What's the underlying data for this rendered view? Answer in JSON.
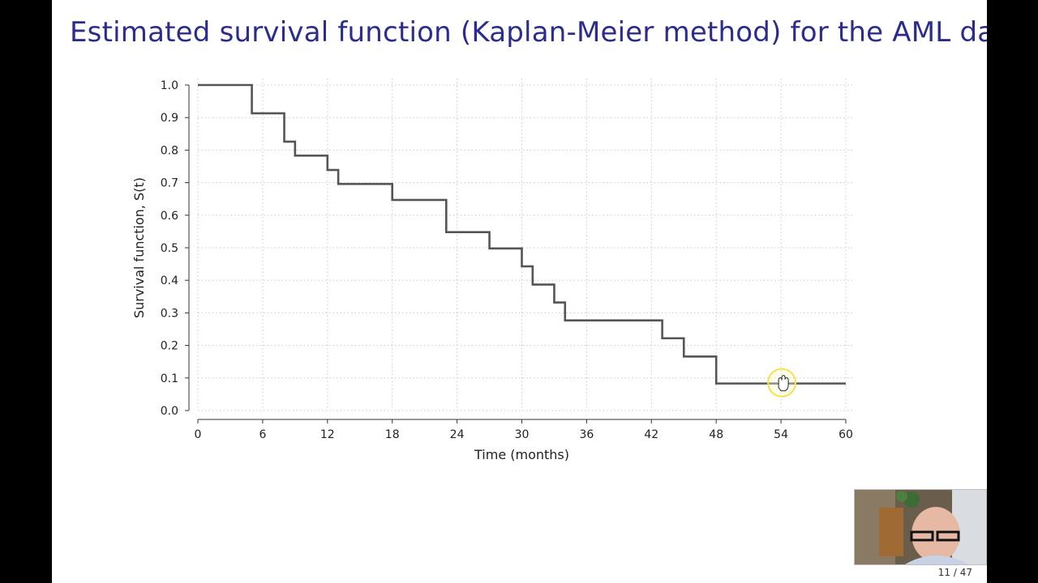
{
  "slide": {
    "title": "Estimated survival function (Kaplan-Meier method) for the AML data",
    "page_number": "11 / 47"
  },
  "chart_data": {
    "type": "line",
    "step": "post",
    "title": "",
    "xlabel": "Time (months)",
    "ylabel": "Survival function, S(t)",
    "xlim": [
      0,
      60
    ],
    "ylim": [
      0,
      1
    ],
    "xticks": [
      0,
      6,
      12,
      18,
      24,
      30,
      36,
      42,
      48,
      54,
      60
    ],
    "yticks": [
      0.0,
      0.1,
      0.2,
      0.3,
      0.4,
      0.5,
      0.6,
      0.7,
      0.8,
      0.9,
      1.0
    ],
    "ytick_labels": [
      "0.0",
      "0.1",
      "0.2",
      "0.3",
      "0.4",
      "0.5",
      "0.6",
      "0.7",
      "0.8",
      "0.9",
      "1.0"
    ],
    "grid": true,
    "series": [
      {
        "name": "",
        "color": "#555555",
        "x": [
          0,
          5,
          8,
          9,
          12,
          13,
          18,
          23,
          27,
          30,
          31,
          33,
          34,
          43,
          45,
          48,
          60
        ],
        "y": [
          1.0,
          0.913,
          0.826,
          0.783,
          0.739,
          0.696,
          0.647,
          0.548,
          0.498,
          0.443,
          0.387,
          0.332,
          0.277,
          0.222,
          0.166,
          0.083,
          0.083
        ]
      }
    ]
  },
  "colors": {
    "title": "#2c2c8f",
    "background": "#000000",
    "slide": "#ffffff",
    "pointer_ring": "#f2e34a"
  },
  "overlay": {
    "pointer_icon": "hand-pointer-icon",
    "pointer_at": {
      "x": 54,
      "y": 0.083
    },
    "webcam": "presenter-webcam"
  }
}
